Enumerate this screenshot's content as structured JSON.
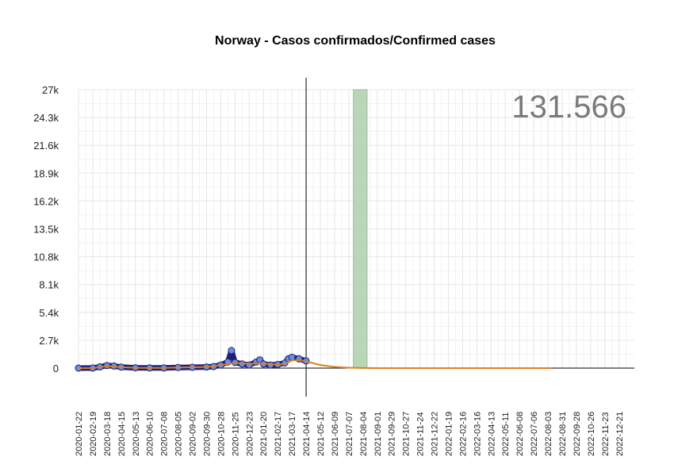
{
  "chart_data": {
    "type": "line",
    "title": "Norway - Casos confirmados/Confirmed cases",
    "total_label": "131.566",
    "xlabel": "",
    "ylabel": "",
    "ylim": [
      0,
      27000
    ],
    "yticks": [
      0,
      2700,
      5400,
      8100,
      10800,
      13500,
      16200,
      18900,
      21600,
      24300,
      27000
    ],
    "ytick_labels": [
      "0",
      "2.7k",
      "5.4k",
      "8.1k",
      "10.8k",
      "13.5k",
      "16.2k",
      "18.9k",
      "21.6k",
      "24.3k",
      "27k"
    ],
    "x_start": "2020-01-22",
    "x_end": "2023-01-20",
    "xtick_labels": [
      "2020-01-22",
      "2020-02-19",
      "2020-03-18",
      "2020-04-15",
      "2020-05-13",
      "2020-06-10",
      "2020-07-08",
      "2020-08-05",
      "2020-09-02",
      "2020-09-30",
      "2020-10-28",
      "2020-11-25",
      "2020-12-23",
      "2021-01-20",
      "2021-02-17",
      "2021-03-17",
      "2021-04-14",
      "2021-05-12",
      "2021-06-09",
      "2021-07-07",
      "2021-08-04",
      "2021-09-01",
      "2021-09-29",
      "2021-10-27",
      "2021-11-24",
      "2021-12-22",
      "2022-01-19",
      "2022-02-16",
      "2022-03-16",
      "2022-04-13",
      "2022-05-11",
      "2022-06-08",
      "2022-07-06",
      "2022-08-03",
      "2022-08-31",
      "2022-09-28",
      "2022-10-26",
      "2022-11-23",
      "2022-12-21"
    ],
    "last_observed_date": "2021-04-14",
    "highlight_band": {
      "from": "2021-07-16",
      "to": "2021-08-12",
      "color": "#b9d6b9"
    },
    "grid": true,
    "series": [
      {
        "kind": "scatter",
        "color": "#1f1f7a",
        "points": [
          [
            "2020-01-22",
            0
          ],
          [
            "2020-02-19",
            5
          ],
          [
            "2020-03-04",
            120
          ],
          [
            "2020-03-18",
            250
          ],
          [
            "2020-04-01",
            200
          ],
          [
            "2020-04-15",
            100
          ],
          [
            "2020-05-13",
            30
          ],
          [
            "2020-06-10",
            15
          ],
          [
            "2020-07-08",
            15
          ],
          [
            "2020-08-05",
            60
          ],
          [
            "2020-09-02",
            80
          ],
          [
            "2020-09-30",
            110
          ],
          [
            "2020-10-14",
            150
          ],
          [
            "2020-10-28",
            300
          ],
          [
            "2020-11-11",
            600
          ],
          [
            "2020-11-18",
            1700
          ],
          [
            "2020-11-25",
            550
          ],
          [
            "2020-12-09",
            400
          ],
          [
            "2020-12-23",
            300
          ],
          [
            "2021-01-06",
            600
          ],
          [
            "2021-01-13",
            800
          ],
          [
            "2021-01-20",
            400
          ],
          [
            "2021-02-03",
            300
          ],
          [
            "2021-02-17",
            350
          ],
          [
            "2021-03-03",
            500
          ],
          [
            "2021-03-10",
            900
          ],
          [
            "2021-03-17",
            1050
          ],
          [
            "2021-03-31",
            900
          ],
          [
            "2021-04-14",
            700
          ]
        ]
      },
      {
        "kind": "line",
        "color": "#d9821e",
        "points": [
          [
            "2020-01-22",
            0
          ],
          [
            "2020-02-19",
            10
          ],
          [
            "2020-03-18",
            180
          ],
          [
            "2020-04-15",
            90
          ],
          [
            "2020-05-13",
            30
          ],
          [
            "2020-06-10",
            20
          ],
          [
            "2020-07-08",
            20
          ],
          [
            "2020-08-05",
            60
          ],
          [
            "2020-09-02",
            80
          ],
          [
            "2020-09-30",
            120
          ],
          [
            "2020-10-28",
            300
          ],
          [
            "2020-11-25",
            500
          ],
          [
            "2020-12-23",
            420
          ],
          [
            "2021-01-20",
            450
          ],
          [
            "2021-02-17",
            330
          ],
          [
            "2021-03-03",
            400
          ],
          [
            "2021-03-17",
            750
          ],
          [
            "2021-03-31",
            780
          ],
          [
            "2021-04-14",
            650
          ],
          [
            "2021-05-12",
            300
          ],
          [
            "2021-06-09",
            120
          ],
          [
            "2021-07-07",
            40
          ],
          [
            "2021-08-04",
            10
          ],
          [
            "2021-09-01",
            3
          ],
          [
            "2022-08-10",
            0
          ]
        ]
      }
    ]
  }
}
